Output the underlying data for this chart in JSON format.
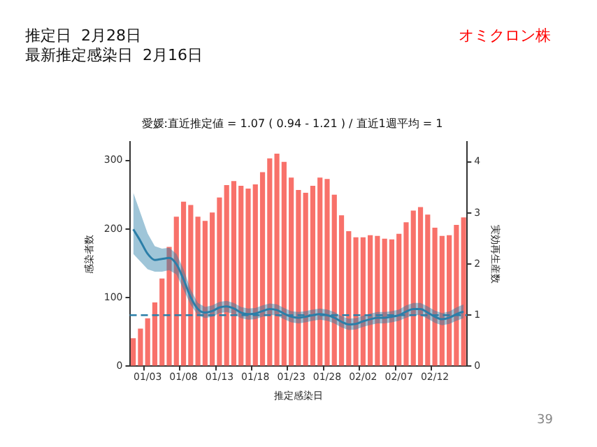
{
  "chart_data": {
    "type": "bar",
    "title": "愛媛:直近推定値 = 1.07 ( 0.94 - 1.21 ) / 直近1週平均 = 1",
    "xlabel": "推定感染日",
    "ylabel": "感染者数",
    "y2label": "実効再生産数",
    "annotations": [
      "推定日  2月28日",
      "最新推定感染日  2月16日",
      "オミクロン株",
      "39"
    ],
    "categories": [
      null,
      null,
      "01/03",
      null,
      null,
      null,
      null,
      "01/08",
      null,
      null,
      null,
      null,
      "01/13",
      null,
      null,
      null,
      null,
      "01/18",
      null,
      null,
      null,
      null,
      "01/23",
      null,
      null,
      null,
      null,
      "01/28",
      null,
      null,
      null,
      null,
      "02/02",
      null,
      null,
      null,
      null,
      "02/07",
      null,
      null,
      null,
      null,
      "02/12",
      null,
      null,
      null,
      null
    ],
    "series": [
      {
        "color": "#f8716a",
        "values": [
          41,
          55,
          70,
          93,
          128,
          174,
          218,
          240,
          235,
          218,
          212,
          224,
          246,
          264,
          270,
          263,
          259,
          265,
          283,
          303,
          310,
          298,
          275,
          257,
          253,
          263,
          275,
          273,
          250,
          220,
          197,
          188,
          188,
          191,
          190,
          186,
          185,
          193,
          210,
          227,
          232,
          221,
          202,
          190,
          191,
          206,
          217
        ]
      },
      {
        "type": "line",
        "axis": "y2",
        "color": "#2b7ea8",
        "values": [
          2.68,
          2.45,
          2.2,
          2.08,
          2.1,
          2.12,
          2.0,
          1.7,
          1.35,
          1.12,
          1.05,
          1.08,
          1.15,
          1.17,
          1.13,
          1.05,
          1.02,
          1.03,
          1.08,
          1.12,
          1.1,
          1.03,
          0.97,
          0.95,
          0.97,
          1.0,
          1.02,
          1.0,
          0.95,
          0.87,
          0.82,
          0.83,
          0.88,
          0.92,
          0.95,
          0.95,
          0.97,
          1.0,
          1.07,
          1.12,
          1.12,
          1.05,
          0.97,
          0.92,
          0.95,
          1.02,
          1.07
        ],
        "lower": [
          2.2,
          2.05,
          1.9,
          1.85,
          1.85,
          1.88,
          1.8,
          1.5,
          1.2,
          1.0,
          0.94,
          0.97,
          1.04,
          1.06,
          1.02,
          0.94,
          0.91,
          0.92,
          0.97,
          1.01,
          0.99,
          0.92,
          0.86,
          0.84,
          0.86,
          0.89,
          0.91,
          0.89,
          0.84,
          0.76,
          0.71,
          0.72,
          0.77,
          0.81,
          0.84,
          0.84,
          0.86,
          0.89,
          0.95,
          1.0,
          1.0,
          0.93,
          0.85,
          0.8,
          0.83,
          0.89,
          0.94
        ],
        "upper": [
          3.4,
          3.0,
          2.6,
          2.35,
          2.3,
          2.32,
          2.2,
          1.9,
          1.5,
          1.24,
          1.16,
          1.19,
          1.26,
          1.28,
          1.24,
          1.16,
          1.13,
          1.14,
          1.19,
          1.23,
          1.21,
          1.14,
          1.08,
          1.06,
          1.08,
          1.11,
          1.13,
          1.11,
          1.06,
          0.98,
          0.93,
          0.94,
          0.99,
          1.03,
          1.06,
          1.06,
          1.08,
          1.11,
          1.19,
          1.24,
          1.24,
          1.17,
          1.09,
          1.04,
          1.07,
          1.15,
          1.21
        ]
      }
    ],
    "ylim": [
      0,
      327
    ],
    "yticks": [
      0,
      100,
      200,
      300
    ],
    "y2lim": [
      0,
      4.39
    ],
    "y2ticks": [
      0,
      1,
      2,
      3,
      4
    ],
    "ref_lines": [
      {
        "axis": "y2",
        "value": 1,
        "color": "#2b7ea8",
        "line_style": "dashed"
      }
    ],
    "grid": false,
    "legend": false
  }
}
